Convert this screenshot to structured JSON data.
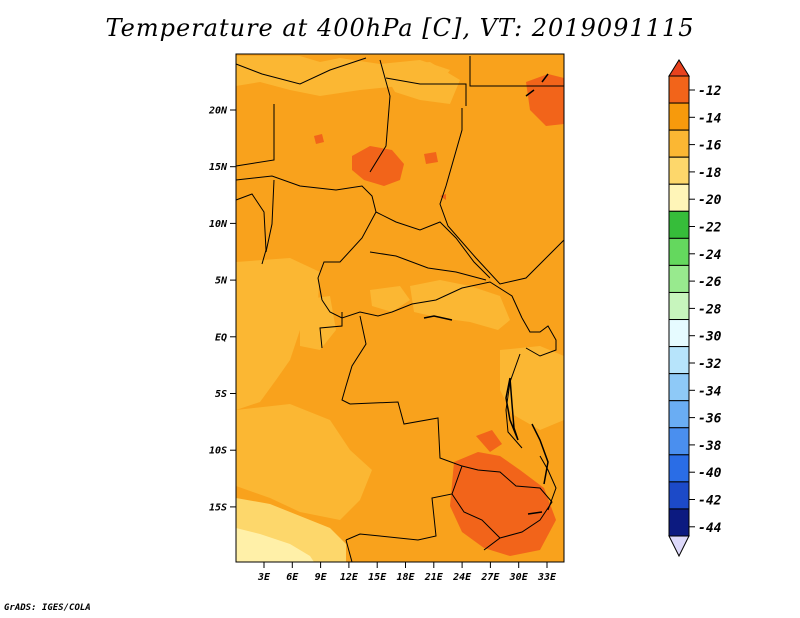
{
  "title": "Temperature at 400hPa [C], VT: 2019091115",
  "credit": "GrADS: IGES/COLA",
  "map": {
    "lat_labels": [
      "20N",
      "15N",
      "10N",
      "5N",
      "EQ",
      "5S",
      "10S",
      "15S"
    ],
    "lon_labels": [
      "3E",
      "6E",
      "9E",
      "12E",
      "15E",
      "18E",
      "21E",
      "24E",
      "27E",
      "30E",
      "33E"
    ],
    "background_color": "#f9a21c"
  },
  "colorbar": {
    "labels": [
      "-12",
      "-14",
      "-16",
      "-18",
      "-20",
      "-22",
      "-24",
      "-26",
      "-28",
      "-30",
      "-32",
      "-34",
      "-36",
      "-38",
      "-40",
      "-42",
      "-44"
    ],
    "colors": [
      "#f2641a",
      "#f79a0c",
      "#fbb733",
      "#fdd76b",
      "#fff5b8",
      "#36bd3a",
      "#64d85e",
      "#98ea8e",
      "#c7f5bd",
      "#e6fbff",
      "#b7e4fb",
      "#8ec9f7",
      "#6aadf3",
      "#4a8fef",
      "#2a6de6",
      "#1c4ac8",
      "#0c1a80"
    ],
    "top_arrow_color": "#e8421e",
    "bottom_arrow_color": "#ddd9fa"
  }
}
